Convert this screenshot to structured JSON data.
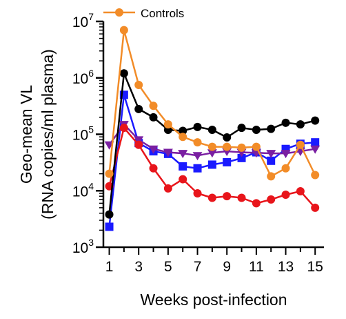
{
  "chart_data": {
    "type": "line",
    "xlabel": "Weeks post-infection",
    "ylabel_line1": "Geo-mean VL",
    "ylabel_line2": "(RNA copies/ml plasma)",
    "x_ticks": [
      1,
      3,
      5,
      7,
      9,
      11,
      13,
      15
    ],
    "xlim": [
      0.6,
      15.6
    ],
    "ylim": [
      1000,
      10000000
    ],
    "yscale": "log",
    "y_ticks": [
      {
        "base": "10",
        "exp": "3",
        "value": 1000
      },
      {
        "base": "10",
        "exp": "4",
        "value": 10000
      },
      {
        "base": "10",
        "exp": "5",
        "value": 100000
      },
      {
        "base": "10",
        "exp": "6",
        "value": 1000000
      },
      {
        "base": "10",
        "exp": "7",
        "value": 10000000
      }
    ],
    "legend": {
      "position": "top-left"
    },
    "series": [
      {
        "name": "Controls",
        "color": "#f28c28",
        "marker": "circle",
        "x": [
          1,
          2,
          3,
          4,
          5,
          6,
          7,
          8,
          9,
          10,
          11,
          12,
          13,
          14,
          15
        ],
        "y": [
          20000,
          7000000,
          750000,
          320000,
          150000,
          90000,
          72000,
          60000,
          60000,
          58000,
          60000,
          18000,
          25000,
          65000,
          19000
        ]
      },
      {
        "name": "",
        "color": "#000000",
        "marker": "circle",
        "x": [
          1,
          2,
          3,
          4,
          5,
          6,
          7,
          8,
          9,
          10,
          11,
          12,
          13,
          14,
          15
        ],
        "y": [
          3800,
          1200000,
          280000,
          200000,
          120000,
          115000,
          135000,
          120000,
          88000,
          130000,
          120000,
          125000,
          160000,
          150000,
          175000
        ]
      },
      {
        "name": "",
        "color": "#1a1aff",
        "marker": "square",
        "x": [
          1,
          2,
          3,
          4,
          5,
          6,
          7,
          8,
          9,
          10,
          11,
          12,
          13,
          14,
          15
        ],
        "y": [
          2300,
          500000,
          70000,
          50000,
          45000,
          27000,
          25000,
          29000,
          32000,
          38000,
          48000,
          34000,
          55000,
          68000,
          72000
        ]
      },
      {
        "name": "",
        "color": "#7a1fa2",
        "marker": "triangle-down",
        "x": [
          1,
          2,
          3,
          4,
          5,
          6,
          7,
          8,
          9,
          10,
          11,
          12,
          13,
          14,
          15
        ],
        "y": [
          65000,
          150000,
          80000,
          55000,
          48000,
          46000,
          42000,
          47000,
          50000,
          48000,
          47000,
          46000,
          46000,
          50000,
          55000
        ]
      },
      {
        "name": "",
        "color": "#e8151b",
        "marker": "circle",
        "x": [
          1,
          2,
          3,
          4,
          5,
          6,
          7,
          8,
          9,
          10,
          11,
          12,
          13,
          14,
          15
        ],
        "y": [
          12000,
          130000,
          65000,
          25000,
          11000,
          16000,
          9000,
          7500,
          8000,
          7500,
          6000,
          7000,
          8500,
          9800,
          5000
        ]
      }
    ]
  }
}
